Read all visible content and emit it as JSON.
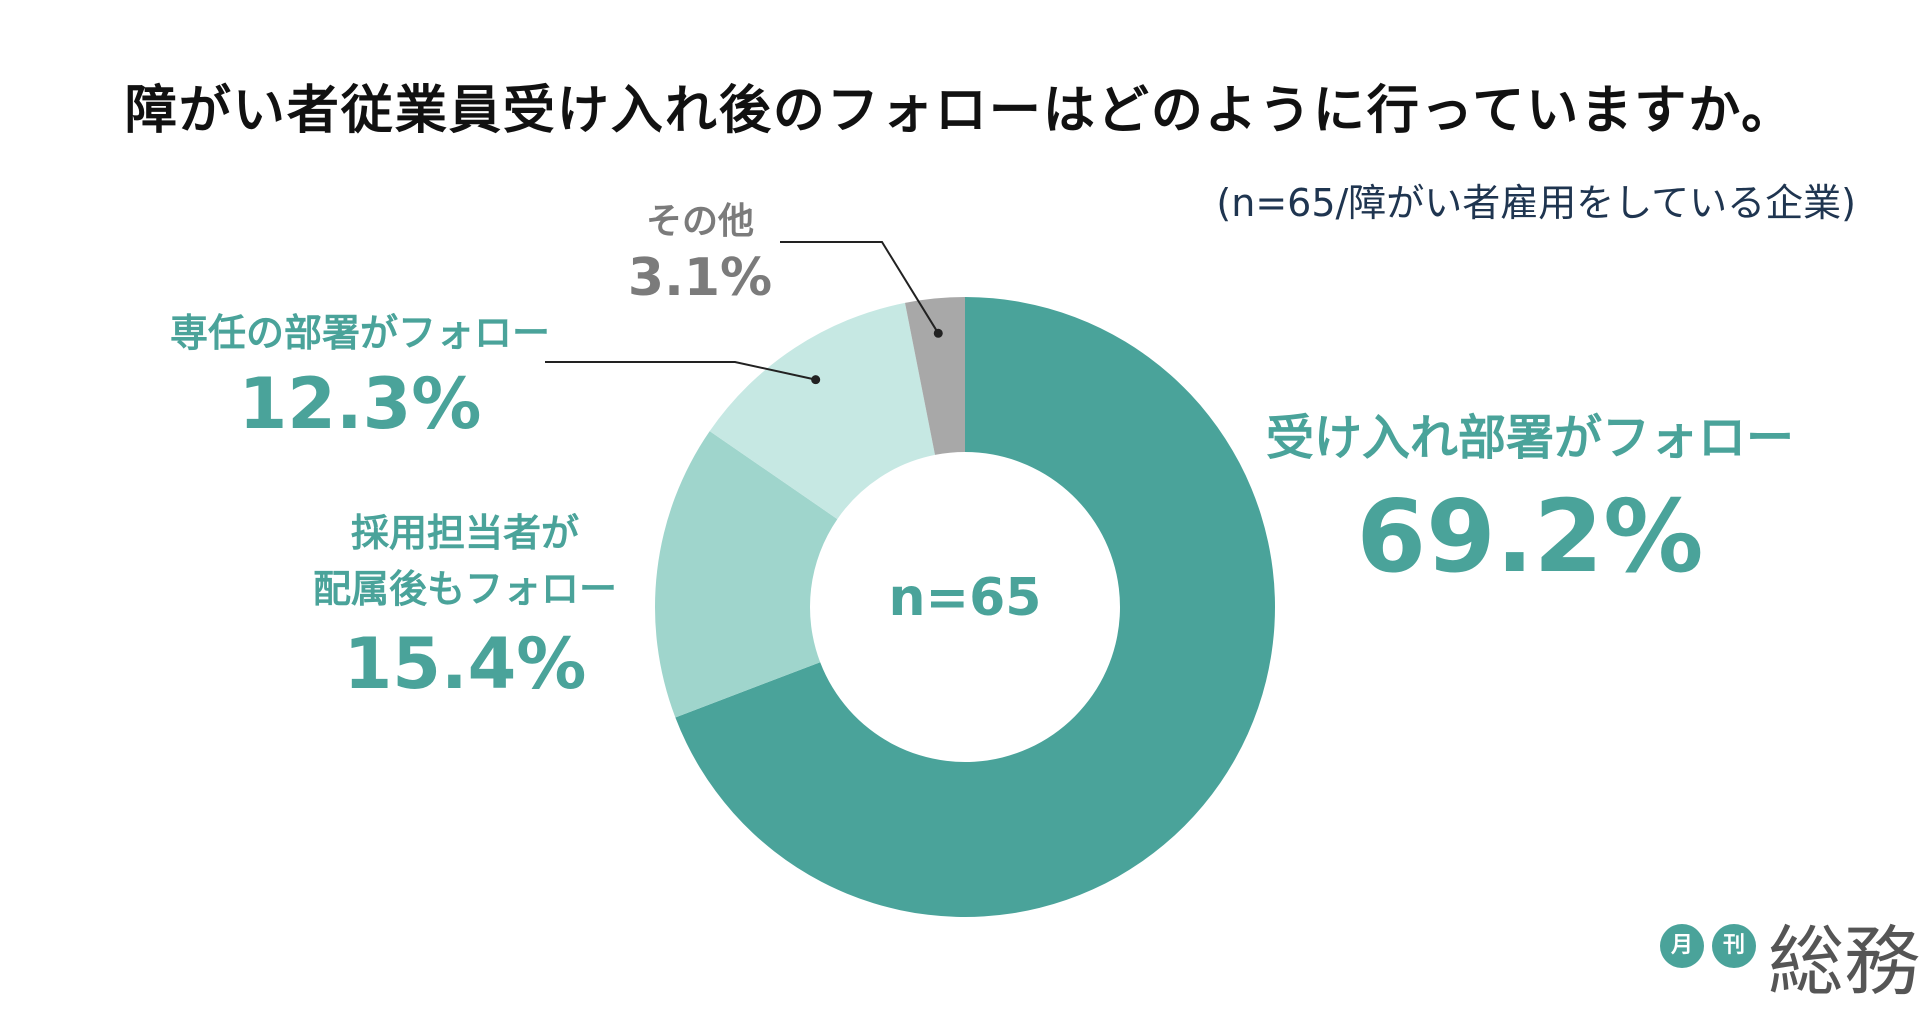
{
  "title": "障がい者従業員受け入れ後のフォローはどのように行っていますか。",
  "subtitle": "(n=65/障がい者雇用をしている企業)",
  "center_label": "n=65",
  "logo": {
    "badge1": "月",
    "badge2": "刊",
    "word": "総務"
  },
  "labels": {
    "main_name": "受け入れ部署がフォロー",
    "main_pct": "69.2%",
    "hr_name_line1": "採用担当者が",
    "hr_name_line2": "配属後もフォロー",
    "hr_pct": "15.4%",
    "dept_name": "専任の部署がフォロー",
    "dept_pct": "12.3%",
    "other_name": "その他",
    "other_pct": "3.1%"
  },
  "colors": {
    "main": "#4aa39a",
    "hr": "#9fd5cc",
    "dept": "#c6e8e3",
    "other": "#a8a8a8"
  },
  "chart_data": {
    "type": "pie",
    "donut": true,
    "title": "障がい者従業員受け入れ後のフォローはどのように行っていますか。",
    "subtitle": "(n=65/障がい者雇用をしている企業)",
    "n": 65,
    "unit": "%",
    "start": "top",
    "direction": "clockwise",
    "slices": [
      {
        "label": "受け入れ部署がフォロー",
        "value": 69.2
      },
      {
        "label": "採用担当者が配属後もフォロー",
        "value": 15.4
      },
      {
        "label": "専任の部署がフォロー",
        "value": 12.3
      },
      {
        "label": "その他",
        "value": 3.1
      }
    ]
  }
}
